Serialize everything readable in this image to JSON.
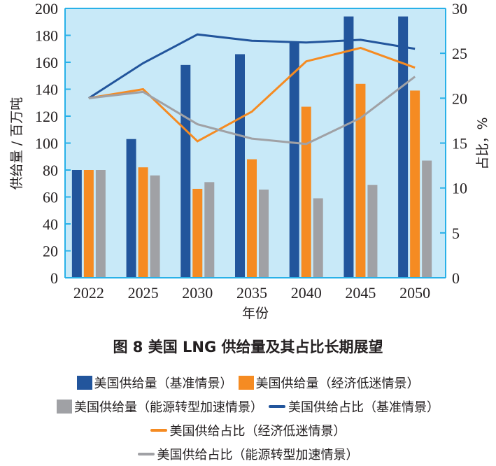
{
  "chart_data": {
    "type": "bar",
    "title": "图 8   美国 LNG 供给量及其占比长期展望",
    "xlabel": "年份",
    "ylabel": "供给量 / 百万吨",
    "y2label": "占比，%",
    "categories": [
      "2022",
      "2025",
      "2030",
      "2035",
      "2040",
      "2045",
      "2050"
    ],
    "ylim": [
      0,
      200
    ],
    "yticks": [
      0,
      20,
      40,
      60,
      80,
      100,
      120,
      140,
      160,
      180,
      200
    ],
    "y2lim": [
      0,
      30
    ],
    "y2ticks": [
      0,
      5,
      10,
      15,
      20,
      25,
      30
    ],
    "grid": false,
    "legend_position": "bottom",
    "bar_series": [
      {
        "name": "美国供给量（基准情景）",
        "color": "#22559c",
        "values": [
          80,
          103,
          158,
          166,
          175,
          194,
          194
        ]
      },
      {
        "name": "美国供给量（经济低迷情景）",
        "color": "#f58b22",
        "values": [
          80,
          82,
          66,
          88,
          127,
          144,
          139
        ]
      },
      {
        "name": "美国供给量（能源转型加速情景）",
        "color": "#a0a1a5",
        "values": [
          80,
          76,
          71,
          65.5,
          59,
          69,
          87
        ]
      }
    ],
    "line_series": [
      {
        "name": "美国供给占比（基准情景）",
        "color": "#22559c",
        "axis": "right",
        "values": [
          20.0,
          23.9,
          27.1,
          26.4,
          26.2,
          26.5,
          25.5
        ]
      },
      {
        "name": "美国供给占比（经济低迷情景）",
        "color": "#f58b22",
        "axis": "right",
        "values": [
          20.0,
          21.0,
          15.2,
          18.5,
          24.1,
          25.6,
          23.4
        ]
      },
      {
        "name": "美国供给占比（能源转型加速情景）",
        "color": "#a0a1a5",
        "axis": "right",
        "values": [
          20.0,
          20.7,
          17.1,
          15.5,
          14.9,
          17.8,
          22.4
        ]
      }
    ],
    "plot_background": "#c8e9f8",
    "axis_color": "#29b1e8"
  },
  "legend": {
    "rows": [
      [
        0,
        1
      ],
      [
        2,
        3
      ],
      [
        4
      ],
      [
        5
      ]
    ]
  }
}
